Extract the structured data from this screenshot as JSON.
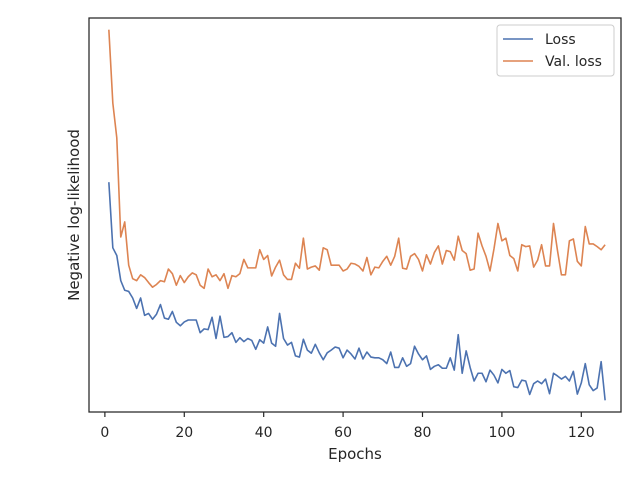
{
  "chart_data": {
    "type": "line",
    "title": "",
    "xlabel": "Epochs",
    "ylabel": "Negative log-likelihood",
    "xlim": [
      -4,
      130
    ],
    "ylim": [
      0,
      1
    ],
    "xticks": [
      0,
      20,
      40,
      60,
      80,
      100,
      120
    ],
    "y_ticks_labeled": false,
    "grid": false,
    "legend_position": "top-right",
    "series": [
      {
        "name": "Loss",
        "color": "#4c72b0",
        "x": [
          1,
          2,
          3,
          4,
          5,
          6,
          7,
          8,
          9,
          10,
          11,
          12,
          13,
          14,
          15,
          16,
          17,
          18,
          19,
          20,
          21,
          22,
          23,
          24,
          25,
          26,
          27,
          28,
          29,
          30,
          31,
          32,
          33,
          34,
          35,
          36,
          37,
          38,
          39,
          40,
          41,
          42,
          43,
          44,
          45,
          46,
          47,
          48,
          49,
          50,
          51,
          52,
          53,
          54,
          55,
          56,
          57,
          58,
          59,
          60,
          61,
          62,
          63,
          64,
          65,
          66,
          67,
          68,
          69,
          70,
          71,
          72,
          73,
          74,
          75,
          76,
          77,
          78,
          79,
          80,
          81,
          82,
          83,
          84,
          85,
          86,
          87,
          88,
          89,
          90,
          91,
          92,
          93,
          94,
          95,
          96,
          97,
          98,
          99,
          100,
          101,
          102,
          103,
          104,
          105,
          106,
          107,
          108,
          109,
          110,
          111,
          112,
          113,
          114,
          115,
          116,
          117,
          118,
          119,
          120,
          121,
          122,
          123,
          124,
          125,
          126
        ],
        "y": [
          0.585,
          0.415,
          0.395,
          0.33,
          0.305,
          0.302,
          0.285,
          0.258,
          0.285,
          0.24,
          0.245,
          0.23,
          0.243,
          0.268,
          0.233,
          0.23,
          0.25,
          0.222,
          0.213,
          0.223,
          0.228,
          0.228,
          0.228,
          0.195,
          0.205,
          0.203,
          0.235,
          0.18,
          0.238,
          0.183,
          0.185,
          0.195,
          0.17,
          0.182,
          0.172,
          0.18,
          0.175,
          0.152,
          0.177,
          0.168,
          0.21,
          0.168,
          0.16,
          0.245,
          0.18,
          0.163,
          0.17,
          0.135,
          0.132,
          0.178,
          0.15,
          0.142,
          0.165,
          0.143,
          0.125,
          0.143,
          0.15,
          0.158,
          0.155,
          0.13,
          0.15,
          0.14,
          0.127,
          0.155,
          0.127,
          0.145,
          0.132,
          0.13,
          0.13,
          0.125,
          0.115,
          0.145,
          0.105,
          0.105,
          0.13,
          0.108,
          0.115,
          0.16,
          0.14,
          0.125,
          0.135,
          0.1,
          0.108,
          0.112,
          0.103,
          0.103,
          0.13,
          0.098,
          0.19,
          0.09,
          0.148,
          0.105,
          0.07,
          0.09,
          0.09,
          0.068,
          0.098,
          0.085,
          0.065,
          0.1,
          0.09,
          0.097,
          0.055,
          0.053,
          0.072,
          0.07,
          0.035,
          0.063,
          0.07,
          0.063,
          0.075,
          0.037,
          0.09,
          0.083,
          0.075,
          0.082,
          0.07,
          0.095,
          0.036,
          0.065,
          0.115,
          0.06,
          0.045,
          0.052,
          0.12,
          0.02
        ]
      },
      {
        "name": "Val. loss",
        "color": "#dd8452",
        "x": [
          1,
          2,
          3,
          4,
          5,
          6,
          7,
          8,
          9,
          10,
          11,
          12,
          13,
          14,
          15,
          16,
          17,
          18,
          19,
          20,
          21,
          22,
          23,
          24,
          25,
          26,
          27,
          28,
          29,
          30,
          31,
          32,
          33,
          34,
          35,
          36,
          37,
          38,
          39,
          40,
          41,
          42,
          43,
          44,
          45,
          46,
          47,
          48,
          49,
          50,
          51,
          52,
          53,
          54,
          55,
          56,
          57,
          58,
          59,
          60,
          61,
          62,
          63,
          64,
          65,
          66,
          67,
          68,
          69,
          70,
          71,
          72,
          73,
          74,
          75,
          76,
          77,
          78,
          79,
          80,
          81,
          82,
          83,
          84,
          85,
          86,
          87,
          88,
          89,
          90,
          91,
          92,
          93,
          94,
          95,
          96,
          97,
          98,
          99,
          100,
          101,
          102,
          103,
          104,
          105,
          106,
          107,
          108,
          109,
          110,
          111,
          112,
          113,
          114,
          115,
          116,
          117,
          118,
          119,
          120,
          121,
          122,
          123,
          124,
          125,
          126
        ],
        "y": [
          0.98,
          0.79,
          0.7,
          0.443,
          0.482,
          0.37,
          0.335,
          0.33,
          0.345,
          0.338,
          0.325,
          0.313,
          0.32,
          0.33,
          0.327,
          0.36,
          0.348,
          0.318,
          0.343,
          0.325,
          0.34,
          0.35,
          0.345,
          0.318,
          0.31,
          0.36,
          0.34,
          0.345,
          0.33,
          0.348,
          0.31,
          0.343,
          0.34,
          0.348,
          0.385,
          0.363,
          0.363,
          0.363,
          0.41,
          0.385,
          0.395,
          0.342,
          0.365,
          0.383,
          0.345,
          0.333,
          0.333,
          0.375,
          0.362,
          0.44,
          0.36,
          0.365,
          0.368,
          0.357,
          0.415,
          0.41,
          0.37,
          0.37,
          0.37,
          0.355,
          0.36,
          0.375,
          0.373,
          0.367,
          0.355,
          0.39,
          0.345,
          0.365,
          0.363,
          0.38,
          0.393,
          0.37,
          0.393,
          0.44,
          0.362,
          0.36,
          0.393,
          0.4,
          0.385,
          0.355,
          0.397,
          0.373,
          0.403,
          0.42,
          0.373,
          0.408,
          0.405,
          0.383,
          0.445,
          0.408,
          0.4,
          0.357,
          0.36,
          0.453,
          0.42,
          0.393,
          0.355,
          0.412,
          0.478,
          0.433,
          0.44,
          0.395,
          0.387,
          0.355,
          0.423,
          0.418,
          0.42,
          0.365,
          0.383,
          0.423,
          0.368,
          0.368,
          0.478,
          0.408,
          0.345,
          0.345,
          0.433,
          0.438,
          0.38,
          0.368,
          0.47,
          0.425,
          0.425,
          0.418,
          0.41,
          0.423
        ]
      }
    ]
  }
}
